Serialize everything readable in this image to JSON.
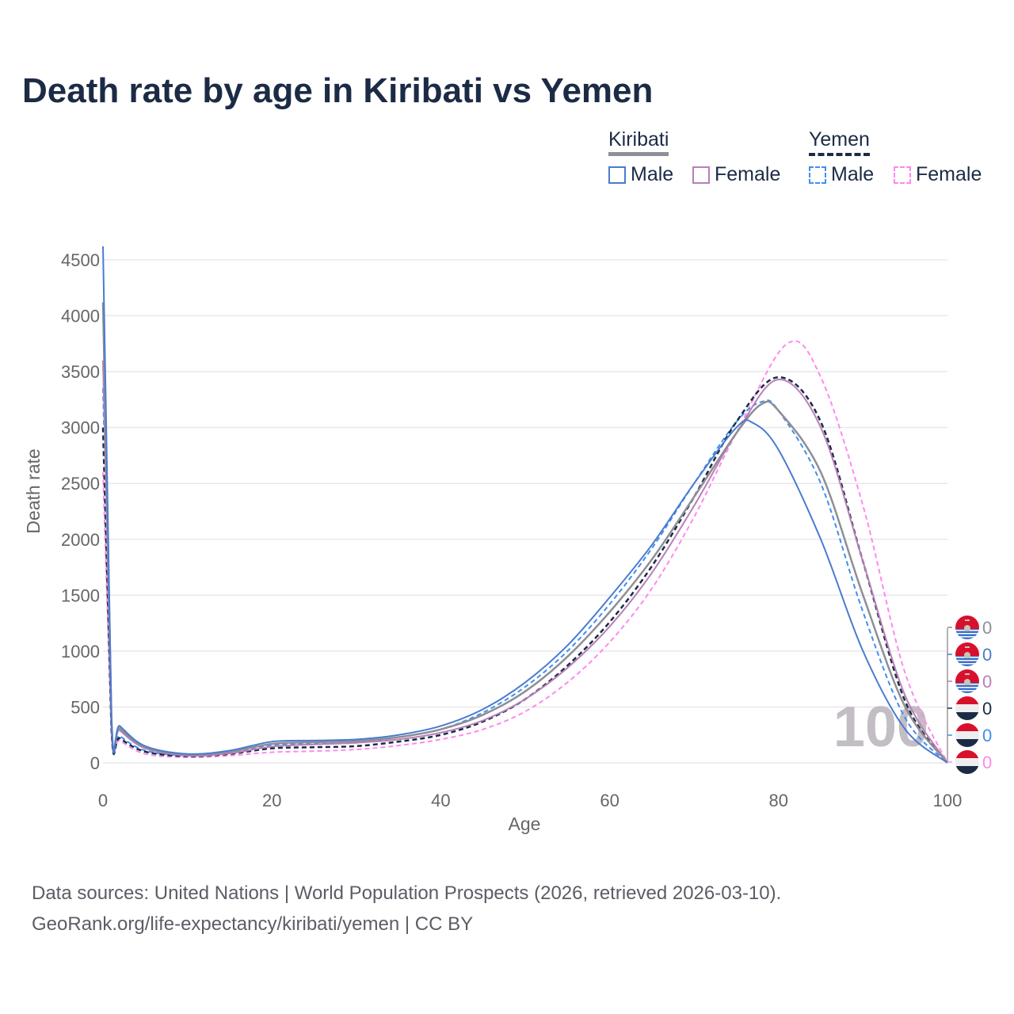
{
  "title": "Death rate by age in Kiribati vs Yemen",
  "legend": {
    "groups": [
      {
        "name": "Kiribati",
        "items": [
          "Male",
          "Female"
        ]
      },
      {
        "name": "Yemen",
        "items": [
          "Male",
          "Female"
        ]
      }
    ]
  },
  "watermark": "100",
  "source_line1": "Data sources: United Nations | World Population Prospects (2026, retrieved 2026-03-10).",
  "source_line2": "GeoRank.org/life-expectancy/kiribati/yemen | CC BY",
  "chart_data": {
    "type": "line",
    "title": "Death rate by age in Kiribati vs Yemen",
    "xlabel": "Age",
    "ylabel": "Death rate",
    "xlim": [
      0,
      100
    ],
    "ylim": [
      0,
      4500
    ],
    "xticks": [
      0,
      20,
      40,
      60,
      80,
      100
    ],
    "yticks": [
      0,
      500,
      1000,
      1500,
      2000,
      2500,
      3000,
      3500,
      4000,
      4500
    ],
    "grid": true,
    "legend_position": "top-right",
    "end_labels": [
      "0",
      "0",
      "0",
      "0",
      "0",
      "0"
    ],
    "series": [
      {
        "name": "Kiribati",
        "flag": "kiribati",
        "color": "#8e8e96",
        "dash": false,
        "width": 2.5,
        "x": [
          0,
          1,
          2,
          5,
          10,
          15,
          20,
          25,
          30,
          35,
          40,
          45,
          50,
          55,
          60,
          65,
          70,
          75,
          78,
          80,
          85,
          90,
          95,
          100
        ],
        "values": [
          4120,
          400,
          310,
          140,
          75,
          100,
          170,
          185,
          195,
          230,
          300,
          430,
          640,
          950,
          1350,
          1820,
          2380,
          2950,
          3210,
          3150,
          2600,
          1500,
          500,
          0
        ]
      },
      {
        "name": "Kiribati Male",
        "flag": "kiribati",
        "color": "#4a7bd0",
        "dash": false,
        "width": 2,
        "x": [
          0,
          1,
          2,
          5,
          10,
          15,
          20,
          25,
          30,
          35,
          40,
          45,
          50,
          55,
          60,
          65,
          70,
          75,
          77,
          80,
          85,
          90,
          95,
          100
        ],
        "values": [
          4620,
          420,
          330,
          150,
          80,
          110,
          190,
          200,
          210,
          250,
          330,
          480,
          720,
          1050,
          1480,
          1950,
          2500,
          3000,
          3040,
          2800,
          2000,
          1000,
          300,
          0
        ]
      },
      {
        "name": "Kiribati Female",
        "flag": "kiribati",
        "color": "#b87fb8",
        "dash": false,
        "width": 2,
        "x": [
          0,
          1,
          2,
          5,
          10,
          15,
          20,
          25,
          30,
          35,
          40,
          45,
          50,
          55,
          60,
          65,
          70,
          75,
          80,
          85,
          90,
          95,
          100
        ],
        "values": [
          3600,
          380,
          290,
          130,
          65,
          85,
          145,
          165,
          180,
          210,
          270,
          380,
          570,
          850,
          1220,
          1700,
          2300,
          2950,
          3430,
          3000,
          1800,
          600,
          0
        ]
      },
      {
        "name": "Yemen",
        "flag": "yemen",
        "color": "#1c2b45",
        "dash": true,
        "width": 2.5,
        "x": [
          0,
          1,
          2,
          5,
          10,
          15,
          20,
          25,
          30,
          35,
          40,
          45,
          50,
          55,
          60,
          65,
          70,
          75,
          80,
          85,
          90,
          95,
          100
        ],
        "values": [
          3000,
          300,
          220,
          100,
          60,
          80,
          130,
          140,
          150,
          190,
          250,
          370,
          570,
          870,
          1260,
          1760,
          2380,
          3050,
          3450,
          3050,
          1800,
          550,
          0
        ]
      },
      {
        "name": "Yemen Male",
        "flag": "yemen",
        "color": "#3f8ef0",
        "dash": true,
        "width": 2,
        "x": [
          0,
          1,
          2,
          5,
          10,
          15,
          20,
          25,
          30,
          35,
          40,
          45,
          50,
          55,
          60,
          65,
          70,
          75,
          78,
          80,
          85,
          90,
          95,
          100
        ],
        "values": [
          3350,
          320,
          240,
          110,
          65,
          95,
          160,
          170,
          180,
          230,
          300,
          450,
          680,
          1000,
          1420,
          1920,
          2500,
          3050,
          3230,
          3150,
          2500,
          1350,
          400,
          0
        ]
      },
      {
        "name": "Yemen Female",
        "flag": "yemen",
        "color": "#ff88ee",
        "dash": true,
        "width": 2,
        "x": [
          0,
          1,
          2,
          5,
          10,
          15,
          20,
          25,
          30,
          35,
          40,
          45,
          50,
          55,
          60,
          65,
          70,
          75,
          81,
          85,
          90,
          95,
          100
        ],
        "values": [
          2600,
          270,
          200,
          80,
          50,
          65,
          95,
          105,
          120,
          155,
          210,
          300,
          460,
          720,
          1080,
          1560,
          2200,
          2950,
          3750,
          3450,
          2300,
          800,
          0
        ]
      }
    ]
  }
}
